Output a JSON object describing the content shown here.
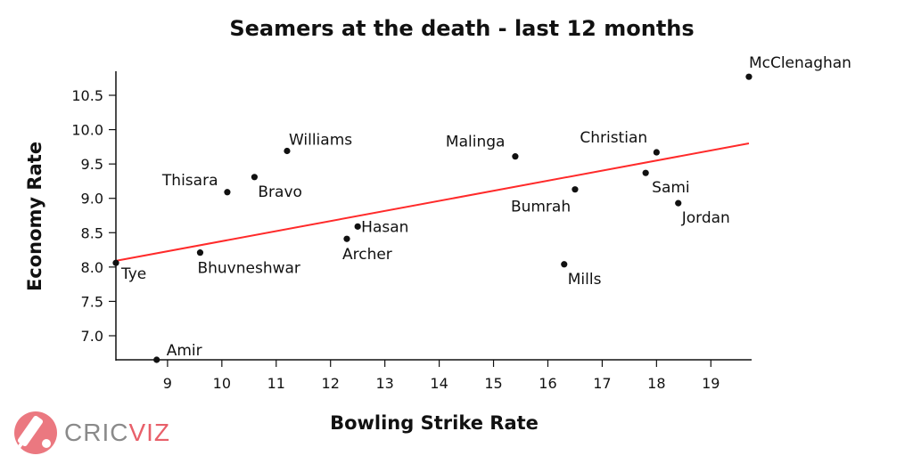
{
  "chart_data": {
    "type": "scatter",
    "title": "Seamers at the death - last 12 months",
    "xlabel": "Bowling Strike Rate",
    "ylabel": "Economy Rate",
    "xlim": [
      8.05,
      19.75
    ],
    "ylim": [
      6.65,
      10.85
    ],
    "xticks": [
      "9",
      "10",
      "11",
      "12",
      "13",
      "14",
      "15",
      "16",
      "17",
      "18",
      "19"
    ],
    "yticks": [
      "7.0",
      "7.5",
      "8.0",
      "8.5",
      "9.0",
      "9.5",
      "10.0",
      "10.5"
    ],
    "points": [
      {
        "name": "McClenaghan",
        "x": 19.7,
        "y": 10.77
      },
      {
        "name": "Christian",
        "x": 18.0,
        "y": 9.67
      },
      {
        "name": "Sami",
        "x": 17.8,
        "y": 9.37
      },
      {
        "name": "Jordan",
        "x": 18.4,
        "y": 8.93
      },
      {
        "name": "Malinga",
        "x": 15.4,
        "y": 9.61
      },
      {
        "name": "Bumrah",
        "x": 16.5,
        "y": 9.13
      },
      {
        "name": "Mills",
        "x": 16.3,
        "y": 8.04
      },
      {
        "name": "Williams",
        "x": 11.2,
        "y": 9.69
      },
      {
        "name": "Bravo",
        "x": 10.6,
        "y": 9.31
      },
      {
        "name": "Thisara",
        "x": 10.1,
        "y": 9.09
      },
      {
        "name": "Hasan",
        "x": 12.5,
        "y": 8.59
      },
      {
        "name": "Archer",
        "x": 12.3,
        "y": 8.41
      },
      {
        "name": "Bhuvneshwar",
        "x": 9.6,
        "y": 8.21
      },
      {
        "name": "Tye",
        "x": 8.05,
        "y": 8.06
      },
      {
        "name": "Amir",
        "x": 8.8,
        "y": 6.65
      }
    ],
    "trendline": {
      "color": "#ff2a2a",
      "x": [
        8.05,
        19.7
      ],
      "y": [
        8.09,
        9.8
      ]
    },
    "point_color": "#111111",
    "grid": false,
    "legend": "none"
  },
  "branding": {
    "logo_text_1": "CRIC",
    "logo_text_2": "VIZ",
    "logo_icon": "cricket-bat-and-ball-icon",
    "colors": {
      "gray": "#8a8a8a",
      "red": "#e8606a"
    }
  }
}
